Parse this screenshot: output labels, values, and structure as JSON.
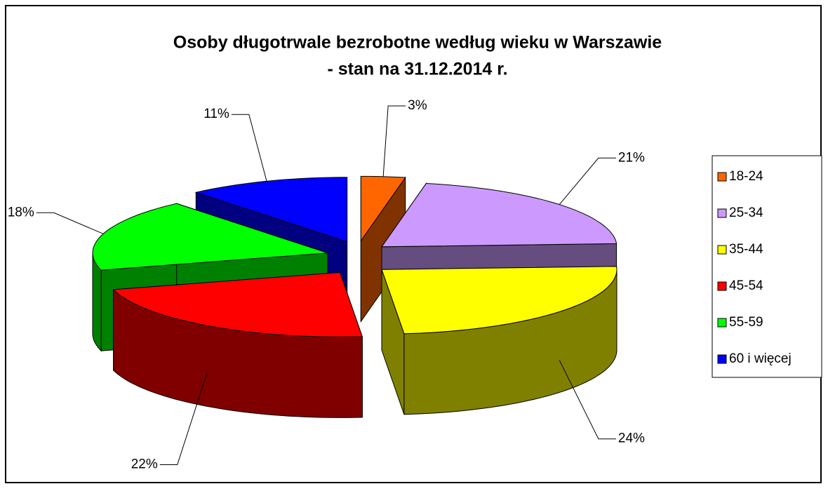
{
  "chart_data": {
    "type": "pie3d",
    "title": [
      "Osoby długotrwale bezrobotne według wieku  w Warszawie",
      "- stan na 31.12.2014 r."
    ],
    "categories": [
      "18-24",
      "25-34",
      "35-44",
      "45-54",
      "55-59",
      "60 i więcej"
    ],
    "values": [
      3,
      21,
      24,
      22,
      18,
      11
    ],
    "value_labels": [
      "3%",
      "21%",
      "24%",
      "22%",
      "18%",
      "11%"
    ],
    "colors": [
      "#ff6600",
      "#cc99ff",
      "#ffff00",
      "#ff0000",
      "#00ff00",
      "#0000ff"
    ],
    "legend": "right"
  }
}
